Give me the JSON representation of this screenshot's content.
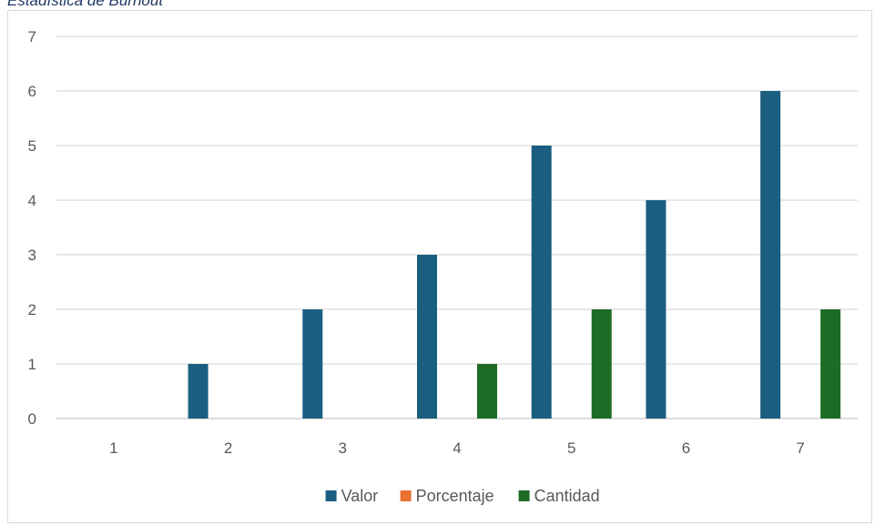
{
  "caption": "Estadística de Burnout",
  "chart_data": {
    "type": "bar",
    "categories": [
      "1",
      "2",
      "3",
      "4",
      "5",
      "6",
      "7"
    ],
    "series": [
      {
        "name": "Valor",
        "color": "#1a5e80",
        "values": [
          0,
          1,
          2,
          3,
          5,
          4,
          6
        ]
      },
      {
        "name": "Porcentaje",
        "color": "#e97132",
        "values": [
          0,
          0,
          0,
          0,
          0,
          0,
          0
        ]
      },
      {
        "name": "Cantidad",
        "color": "#1e6b25",
        "values": [
          0,
          0,
          0,
          1,
          2,
          0,
          2
        ]
      }
    ],
    "y_ticks": [
      "0",
      "1",
      "2",
      "3",
      "4",
      "5",
      "6",
      "7"
    ],
    "ylim": [
      0,
      7
    ],
    "grid": true,
    "legend_position": "bottom"
  }
}
